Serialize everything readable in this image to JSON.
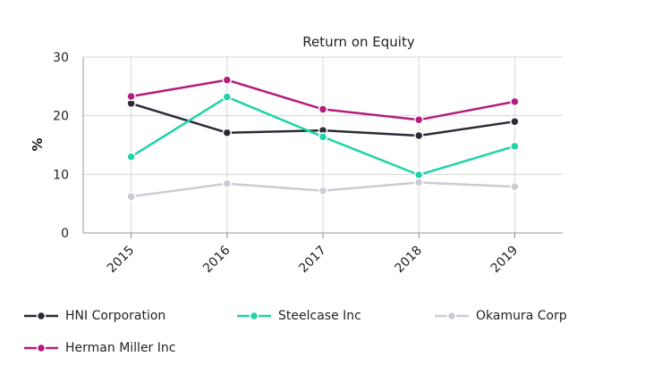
{
  "chart_data": {
    "type": "line",
    "title": "Return on Equity",
    "xlabel": "",
    "ylabel": "%",
    "categories": [
      "2015",
      "2016",
      "2017",
      "2018",
      "2019"
    ],
    "ylim": [
      0,
      30
    ],
    "yticks": [
      "0",
      "10",
      "20",
      "30"
    ],
    "grid": true,
    "legend_position": "bottom",
    "series": [
      {
        "name": "HNI Corporation",
        "color": "#2b2b36",
        "values": [
          22.1,
          17.1,
          17.5,
          16.6,
          19.0
        ]
      },
      {
        "name": "Steelcase Inc",
        "color": "#1fd3a8",
        "values": [
          13.0,
          23.2,
          16.4,
          9.9,
          14.8
        ]
      },
      {
        "name": "Okamura Corp",
        "color": "#c9cdd3",
        "values": [
          6.2,
          8.4,
          7.2,
          8.6,
          7.9
        ]
      },
      {
        "name": "Herman Miller Inc",
        "color": "#b51c7e",
        "values": [
          23.3,
          26.1,
          21.1,
          19.3,
          22.4
        ]
      }
    ]
  }
}
